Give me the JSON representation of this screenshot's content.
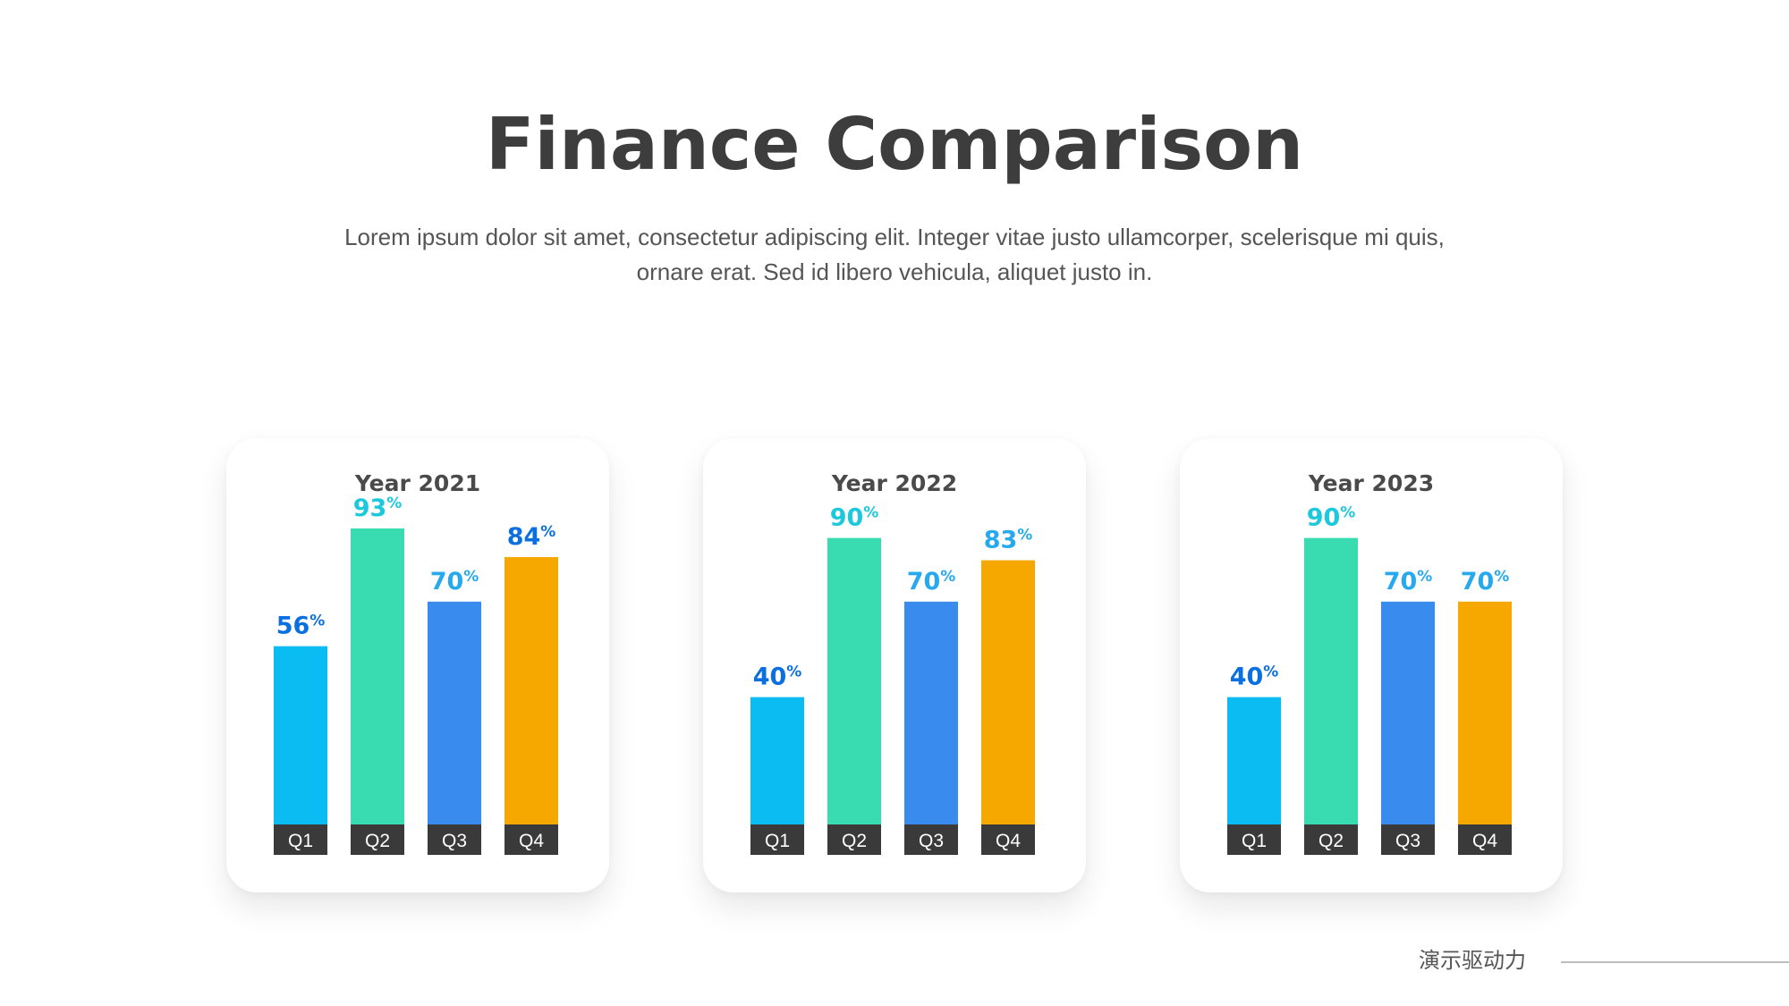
{
  "page": {
    "title": "Finance Comparison",
    "subtitle": "Lorem ipsum dolor sit amet, consectetur adipiscing elit. Integer vitae justo ullamcorper, scelerisque mi quis, ornare erat. Sed id libero vehicula, aliquet justo in.",
    "footer_text": "演示驱动力"
  },
  "colors": {
    "title": "#3d3d3d",
    "category_label_bg": "#3a3a3a",
    "bars": [
      "#0bbcf2",
      "#39dcb1",
      "#3a8bee",
      "#f6a800"
    ],
    "value_labels": [
      "#0b6fe0",
      "#1cc8dc",
      "#27a9ee",
      "#0b6fe0"
    ]
  },
  "chart_data": [
    {
      "type": "bar",
      "title": "Year 2021",
      "categories": [
        "Q1",
        "Q2",
        "Q3",
        "Q4"
      ],
      "values": [
        56,
        93,
        70,
        84
      ],
      "value_suffix": "%",
      "value_label_colors": [
        "#0b6fe0",
        "#1cc8dc",
        "#27a9ee",
        "#0b6fe0"
      ],
      "ylim": [
        0,
        100
      ],
      "grid": false,
      "legend": "none"
    },
    {
      "type": "bar",
      "title": "Year 2022",
      "categories": [
        "Q1",
        "Q2",
        "Q3",
        "Q4"
      ],
      "values": [
        40,
        90,
        70,
        83
      ],
      "value_suffix": "%",
      "value_label_colors": [
        "#0b6fe0",
        "#1cc8dc",
        "#27a9ee",
        "#27a9ee"
      ],
      "ylim": [
        0,
        100
      ],
      "grid": false,
      "legend": "none"
    },
    {
      "type": "bar",
      "title": "Year 2023",
      "categories": [
        "Q1",
        "Q2",
        "Q3",
        "Q4"
      ],
      "values": [
        40,
        90,
        70,
        70
      ],
      "value_suffix": "%",
      "value_label_colors": [
        "#0b6fe0",
        "#1cc8dc",
        "#27a9ee",
        "#27a9ee"
      ],
      "ylim": [
        0,
        100
      ],
      "grid": false,
      "legend": "none"
    }
  ]
}
